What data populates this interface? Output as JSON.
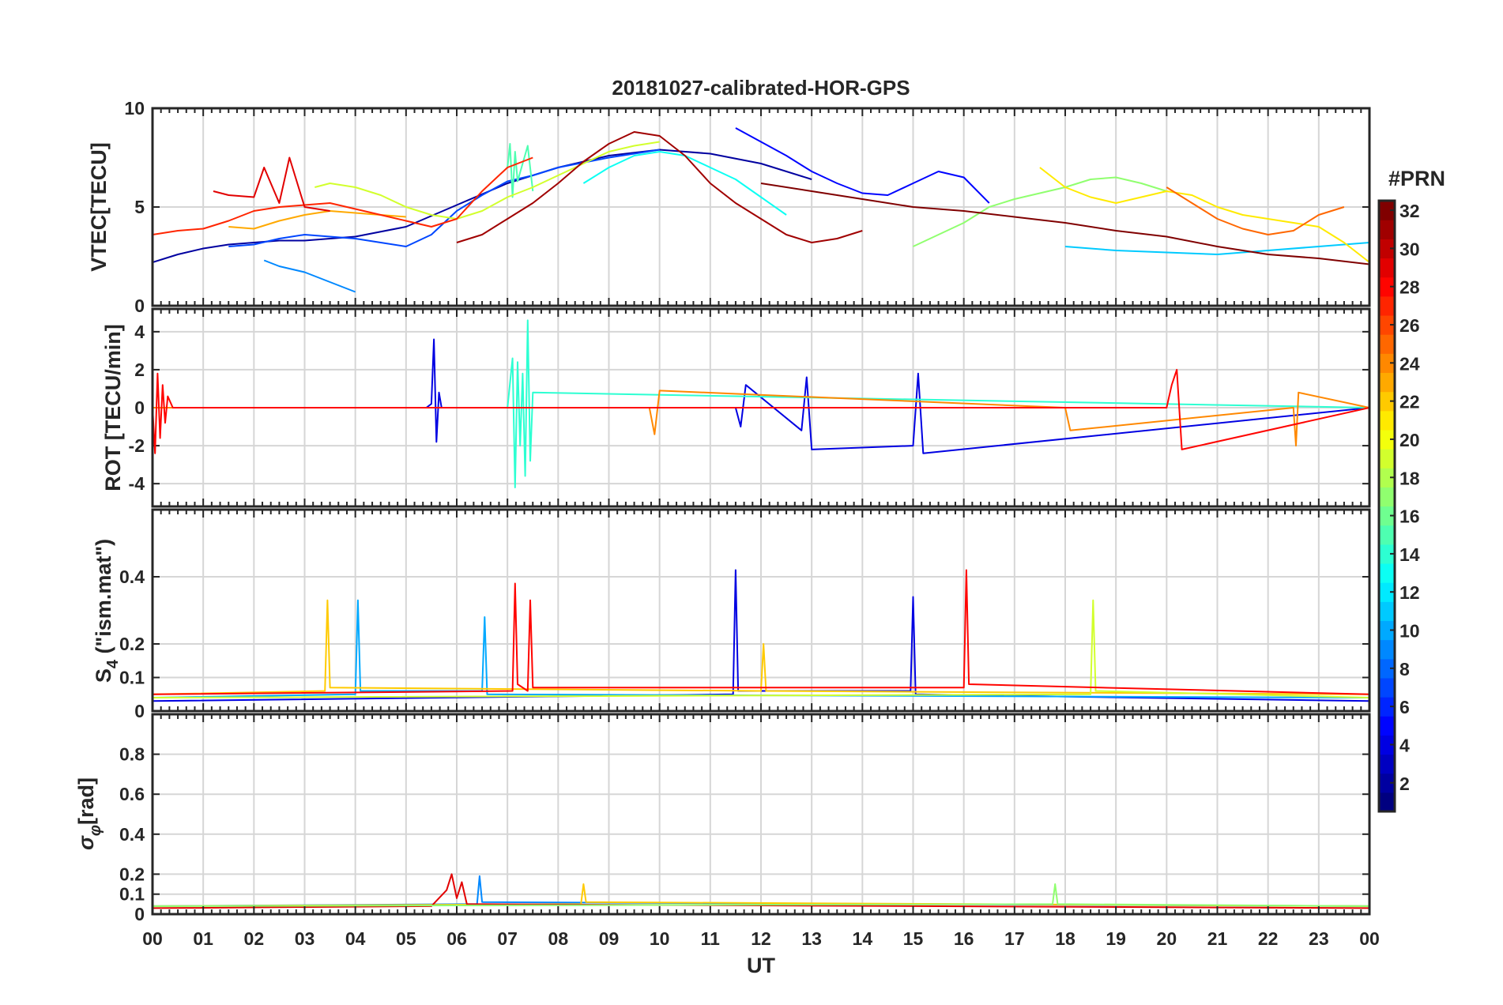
{
  "chart_data": {
    "type": "line",
    "title": "20181027-calibrated-HOR-GPS",
    "xlabel": "UT",
    "x_tick_labels": [
      "00",
      "01",
      "02",
      "03",
      "04",
      "05",
      "06",
      "07",
      "08",
      "09",
      "10",
      "11",
      "12",
      "13",
      "14",
      "15",
      "16",
      "17",
      "18",
      "19",
      "20",
      "21",
      "22",
      "23",
      "00"
    ],
    "xlim": [
      0,
      24
    ],
    "colorbar": {
      "label": "#PRN",
      "range": [
        1,
        32
      ],
      "tick_labels": [
        "2",
        "4",
        "6",
        "8",
        "10",
        "12",
        "14",
        "16",
        "18",
        "20",
        "22",
        "24",
        "26",
        "28",
        "30",
        "32"
      ],
      "colormap": "jet"
    },
    "panels": [
      {
        "id": "vtec",
        "ylabel": "VTEC[TECU]",
        "ylim": [
          0,
          10
        ],
        "yticks": [
          0,
          5,
          10
        ],
        "ytick_labels": [
          "0",
          "5",
          "10"
        ],
        "series": [
          {
            "prn": 2,
            "x": [
              0,
              0.5,
              1,
              1.5,
              2,
              2.5,
              3,
              3.5,
              4,
              5,
              6,
              7,
              8,
              9,
              10,
              11,
              12,
              13
            ],
            "y": [
              2.2,
              2.6,
              2.9,
              3.1,
              3.2,
              3.3,
              3.3,
              3.4,
              3.5,
              4.0,
              5.1,
              6.2,
              7.0,
              7.6,
              7.9,
              7.7,
              7.2,
              6.4
            ]
          },
          {
            "prn": 5,
            "x": [
              11.5,
              12,
              12.5,
              13,
              13.5,
              14,
              14.5,
              15,
              15.5,
              16,
              16.5
            ],
            "y": [
              9.0,
              8.3,
              7.6,
              6.8,
              6.2,
              5.7,
              5.6,
              6.2,
              6.8,
              6.5,
              5.2
            ]
          },
          {
            "prn": 7,
            "x": [
              1.5,
              2,
              2.5,
              3,
              3.5,
              4,
              4.5,
              5,
              5.5,
              6,
              6.5,
              7,
              7.5,
              8,
              9,
              10
            ],
            "y": [
              3.0,
              3.1,
              3.4,
              3.6,
              3.5,
              3.4,
              3.2,
              3.0,
              3.6,
              4.8,
              5.6,
              6.3,
              6.6,
              7.0,
              7.5,
              7.9
            ]
          },
          {
            "prn": 9,
            "x": [
              2.2,
              2.5,
              3,
              3.5,
              4
            ],
            "y": [
              2.3,
              2.0,
              1.7,
              1.2,
              0.7
            ]
          },
          {
            "prn": 11,
            "x": [
              18,
              19,
              20,
              21,
              22,
              23,
              24
            ],
            "y": [
              3.0,
              2.8,
              2.7,
              2.6,
              2.8,
              3.0,
              3.2
            ]
          },
          {
            "prn": 13,
            "x": [
              8.5,
              9,
              9.5,
              10,
              10.5,
              11,
              11.5,
              12,
              12.5
            ],
            "y": [
              6.2,
              7.0,
              7.6,
              7.8,
              7.6,
              7.0,
              6.4,
              5.5,
              4.6
            ]
          },
          {
            "prn": 15,
            "x": [
              7.0,
              7.05,
              7.1,
              7.15,
              7.2,
              7.3,
              7.4,
              7.5
            ],
            "y": [
              7.0,
              8.2,
              5.5,
              7.8,
              6.3,
              7.2,
              8.1,
              5.8
            ]
          },
          {
            "prn": 17,
            "x": [
              15,
              15.5,
              16,
              16.5,
              17,
              17.5,
              18,
              18.5,
              19,
              19.5,
              20
            ],
            "y": [
              3.0,
              3.6,
              4.2,
              5.0,
              5.4,
              5.7,
              6.0,
              6.4,
              6.5,
              6.2,
              5.8
            ]
          },
          {
            "prn": 19,
            "x": [
              3.2,
              3.5,
              4,
              4.5,
              5,
              5.5,
              6,
              6.5,
              7,
              7.5,
              8,
              8.5,
              9,
              9.5,
              10
            ],
            "y": [
              6.0,
              6.2,
              6.0,
              5.6,
              5.0,
              4.6,
              4.4,
              4.8,
              5.5,
              6.0,
              6.6,
              7.2,
              7.8,
              8.1,
              8.3
            ]
          },
          {
            "prn": 21,
            "x": [
              17.5,
              18,
              18.5,
              19,
              19.5,
              20,
              20.5,
              21,
              21.5,
              22,
              22.5,
              23,
              23.5,
              24
            ],
            "y": [
              7.0,
              6.0,
              5.5,
              5.2,
              5.5,
              5.8,
              5.6,
              5.0,
              4.6,
              4.4,
              4.2,
              4.0,
              3.2,
              2.2
            ]
          },
          {
            "prn": 23,
            "x": [
              1.5,
              2,
              2.5,
              3,
              3.5,
              4,
              4.5,
              5
            ],
            "y": [
              4.0,
              3.9,
              4.3,
              4.6,
              4.8,
              4.7,
              4.6,
              4.5
            ]
          },
          {
            "prn": 25,
            "x": [
              20,
              20.5,
              21,
              21.5,
              22,
              22.5,
              23,
              23.5
            ],
            "y": [
              6.0,
              5.2,
              4.4,
              3.9,
              3.6,
              3.8,
              4.6,
              5.0
            ]
          },
          {
            "prn": 27,
            "x": [
              0,
              0.5,
              1,
              1.5,
              2,
              2.5,
              3,
              3.5,
              4,
              4.5,
              5,
              5.5,
              6,
              6.5,
              7,
              7.5
            ],
            "y": [
              3.6,
              3.8,
              3.9,
              4.3,
              4.8,
              5.0,
              5.1,
              5.2,
              4.9,
              4.6,
              4.3,
              4.0,
              4.4,
              5.8,
              7.0,
              7.5
            ]
          },
          {
            "prn": 29,
            "x": [
              1.2,
              1.5,
              2,
              2.2,
              2.5,
              2.7,
              3,
              3.5
            ],
            "y": [
              5.8,
              5.6,
              5.5,
              7.0,
              5.2,
              7.5,
              5.0,
              4.8
            ]
          },
          {
            "prn": 31,
            "x": [
              6,
              6.5,
              7,
              7.5,
              8,
              8.5,
              9,
              9.5,
              10,
              10.5,
              11,
              11.5,
              12,
              12.5,
              13,
              13.5,
              14
            ],
            "y": [
              3.2,
              3.6,
              4.4,
              5.2,
              6.2,
              7.3,
              8.2,
              8.8,
              8.6,
              7.6,
              6.2,
              5.2,
              4.4,
              3.6,
              3.2,
              3.4,
              3.8
            ]
          },
          {
            "prn": 32,
            "x": [
              12,
              13,
              14,
              15,
              16,
              17,
              18,
              19,
              20,
              21,
              22,
              23,
              24
            ],
            "y": [
              6.2,
              5.8,
              5.4,
              5.0,
              4.8,
              4.5,
              4.2,
              3.8,
              3.5,
              3.0,
              2.6,
              2.4,
              2.1
            ]
          }
        ]
      },
      {
        "id": "rot",
        "ylabel": "ROT [TECU/min]",
        "ylim": [
          -5.2,
          5.2
        ],
        "yticks": [
          -4,
          -2,
          0,
          2,
          4
        ],
        "ytick_labels": [
          "-4",
          "-2",
          "0",
          "2",
          "4"
        ],
        "series": [
          {
            "prn": 4,
            "x": [
              0,
              5.4,
              5.5,
              5.55,
              5.6,
              5.65,
              5.7,
              11.5,
              11.6,
              11.7,
              12.8,
              12.9,
              13.0,
              15.0,
              15.1,
              15.2,
              24
            ],
            "y": [
              0,
              0,
              0.2,
              3.6,
              -1.8,
              0.8,
              0,
              0,
              -1.0,
              1.2,
              -1.2,
              1.6,
              -2.2,
              -2.0,
              1.8,
              -2.4,
              0
            ]
          },
          {
            "prn": 14,
            "x": [
              0,
              7.0,
              7.1,
              7.15,
              7.2,
              7.25,
              7.3,
              7.35,
              7.4,
              7.45,
              7.5,
              24
            ],
            "y": [
              0,
              0,
              2.6,
              -4.2,
              2.4,
              -2.0,
              1.8,
              -3.6,
              4.6,
              -2.8,
              0.8,
              0
            ]
          },
          {
            "prn": 24,
            "x": [
              0,
              9.8,
              9.9,
              10.0,
              18.0,
              18.1,
              22.5,
              22.55,
              22.6,
              24
            ],
            "y": [
              0,
              0,
              -1.4,
              0.9,
              0,
              -1.2,
              0,
              -2.0,
              0.8,
              0
            ]
          },
          {
            "prn": 28,
            "x": [
              0,
              0.05,
              0.1,
              0.15,
              0.2,
              0.25,
              0.3,
              0.4,
              20.0,
              20.1,
              20.2,
              20.3,
              24
            ],
            "y": [
              0,
              -2.4,
              1.8,
              -1.6,
              1.2,
              -0.8,
              0.6,
              0,
              0,
              1.2,
              2.0,
              -2.2,
              0
            ]
          }
        ]
      },
      {
        "id": "s4",
        "ylabel": "S4 (\"ism.mat\")",
        "ylabel_main": "S",
        "ylabel_sub": "4",
        "ylabel_rest": " (\"ism.mat\")",
        "ylim": [
          0,
          0.6
        ],
        "yticks": [
          0,
          0.1,
          0.2,
          0.4
        ],
        "ytick_labels": [
          "0",
          "0.1",
          "0.2",
          "0.4"
        ],
        "series": [
          {
            "prn": 4,
            "x": [
              0,
              11.45,
              11.5,
              11.55,
              14.95,
              15.0,
              15.05,
              24
            ],
            "y": [
              0.03,
              0.05,
              0.42,
              0.06,
              0.06,
              0.34,
              0.05,
              0.03
            ]
          },
          {
            "prn": 10,
            "x": [
              0,
              4.0,
              4.05,
              4.1,
              6.5,
              6.55,
              6.6,
              24
            ],
            "y": [
              0.04,
              0.05,
              0.33,
              0.06,
              0.06,
              0.28,
              0.05,
              0.04
            ]
          },
          {
            "prn": 22,
            "x": [
              0,
              3.4,
              3.45,
              3.5,
              12.0,
              12.05,
              12.1,
              24
            ],
            "y": [
              0.05,
              0.06,
              0.33,
              0.07,
              0.06,
              0.2,
              0.06,
              0.05
            ]
          },
          {
            "prn": 19,
            "x": [
              0,
              18.5,
              18.55,
              18.6,
              24
            ],
            "y": [
              0.04,
              0.05,
              0.33,
              0.06,
              0.04
            ]
          },
          {
            "prn": 28,
            "x": [
              0,
              7.1,
              7.15,
              7.2,
              7.4,
              7.45,
              7.5,
              16.0,
              16.05,
              16.1,
              24
            ],
            "y": [
              0.05,
              0.06,
              0.38,
              0.08,
              0.06,
              0.33,
              0.07,
              0.07,
              0.42,
              0.08,
              0.05
            ]
          }
        ]
      },
      {
        "id": "sigma_phi",
        "ylabel": "σφ[rad]",
        "ylabel_main": "σ",
        "ylabel_sub": "φ",
        "ylabel_rest": "[rad]",
        "ylim": [
          0,
          1.0
        ],
        "yticks": [
          0,
          0.1,
          0.2,
          0.4,
          0.6,
          0.8
        ],
        "ytick_labels": [
          "0",
          "0.1",
          "0.2",
          "0.4",
          "0.6",
          "0.8"
        ],
        "series": [
          {
            "prn": 9,
            "x": [
              0,
              6.4,
              6.45,
              6.5,
              24
            ],
            "y": [
              0.04,
              0.05,
              0.19,
              0.06,
              0.04
            ]
          },
          {
            "prn": 22,
            "x": [
              0,
              8.45,
              8.5,
              8.55,
              24
            ],
            "y": [
              0.04,
              0.05,
              0.15,
              0.06,
              0.04
            ]
          },
          {
            "prn": 29,
            "x": [
              0,
              5.5,
              5.8,
              5.9,
              6.0,
              6.1,
              6.2,
              24
            ],
            "y": [
              0.03,
              0.04,
              0.12,
              0.2,
              0.08,
              0.16,
              0.05,
              0.03
            ]
          },
          {
            "prn": 17,
            "x": [
              0,
              17.75,
              17.8,
              17.85,
              24
            ],
            "y": [
              0.04,
              0.05,
              0.15,
              0.05,
              0.04
            ]
          }
        ]
      }
    ]
  }
}
